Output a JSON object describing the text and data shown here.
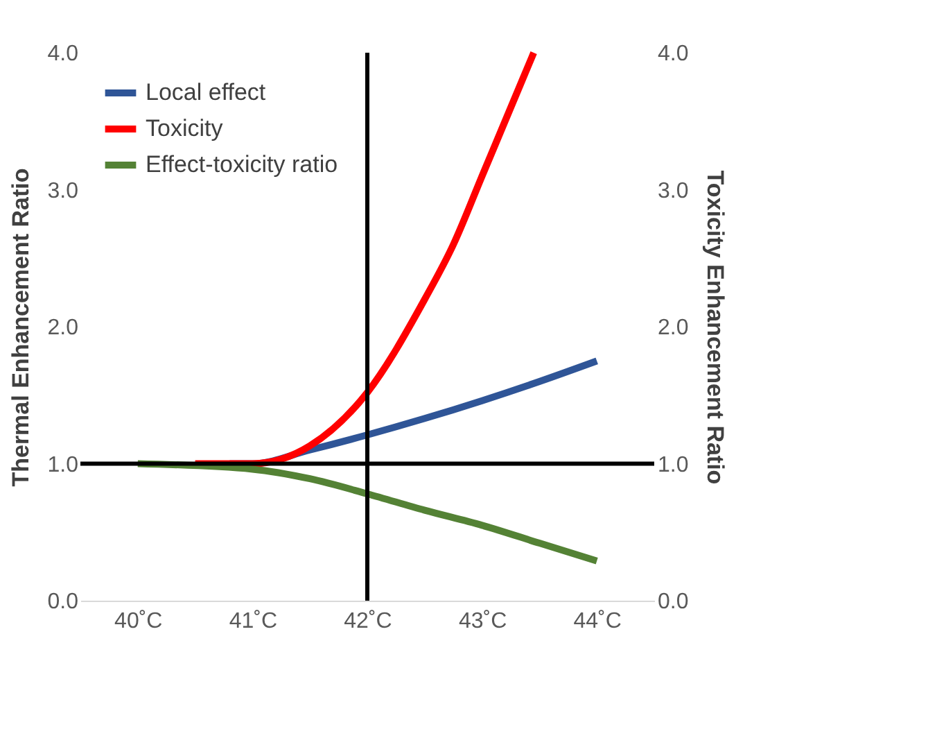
{
  "chart_data": {
    "type": "line",
    "xlabel": null,
    "ylabel": "Thermal Enhancement Ratio",
    "y2label": "Toxicity  Enhancement Ratio",
    "xlim": [
      39.5,
      44.5
    ],
    "xticks": [
      {
        "value": 40,
        "label": "40˚C"
      },
      {
        "value": 41,
        "label": "41˚C"
      },
      {
        "value": 42,
        "label": "42˚C"
      },
      {
        "value": 43,
        "label": "43˚C"
      },
      {
        "value": 44,
        "label": "44˚C"
      }
    ],
    "ylim": [
      0,
      4
    ],
    "yticks": [
      {
        "value": 0,
        "label": "0.0"
      },
      {
        "value": 1,
        "label": "1.0"
      },
      {
        "value": 2,
        "label": "2.0"
      },
      {
        "value": 3,
        "label": "3.0"
      },
      {
        "value": 4,
        "label": "4.0"
      }
    ],
    "y2lim": [
      0,
      4
    ],
    "y2ticks": [
      {
        "value": 0,
        "label": "0.0"
      },
      {
        "value": 1,
        "label": "1.0"
      },
      {
        "value": 2,
        "label": "2.0"
      },
      {
        "value": 3,
        "label": "3.0"
      },
      {
        "value": 4,
        "label": "4.0"
      }
    ],
    "series": [
      {
        "name": "Local effect",
        "color": "#2f5597",
        "x": [
          40.8,
          41,
          41.5,
          42,
          42.5,
          43,
          43.5,
          44
        ],
        "values": [
          1.0,
          1.0,
          1.1,
          1.21,
          1.33,
          1.46,
          1.6,
          1.75
        ]
      },
      {
        "name": "Toxicity",
        "color": "#ff0000",
        "x": [
          40.5,
          41,
          41.5,
          42,
          42.5,
          42.75,
          43,
          43.25,
          43.45
        ],
        "values": [
          1.0,
          1.0,
          1.13,
          1.52,
          2.2,
          2.6,
          3.1,
          3.6,
          4.0
        ]
      },
      {
        "name": "Effect-toxicity ratio",
        "color": "#548235",
        "x": [
          40,
          41,
          41.5,
          42,
          42.5,
          43,
          43.5,
          44
        ],
        "values": [
          1.0,
          0.96,
          0.89,
          0.78,
          0.66,
          0.55,
          0.42,
          0.29
        ]
      }
    ],
    "ref_lines": [
      {
        "axis": "y",
        "value": 1,
        "color": "#000000"
      },
      {
        "axis": "x",
        "value": 42,
        "color": "#000000"
      }
    ],
    "legend": "top left",
    "grid": false,
    "marker": "none",
    "line_style": "solid"
  }
}
